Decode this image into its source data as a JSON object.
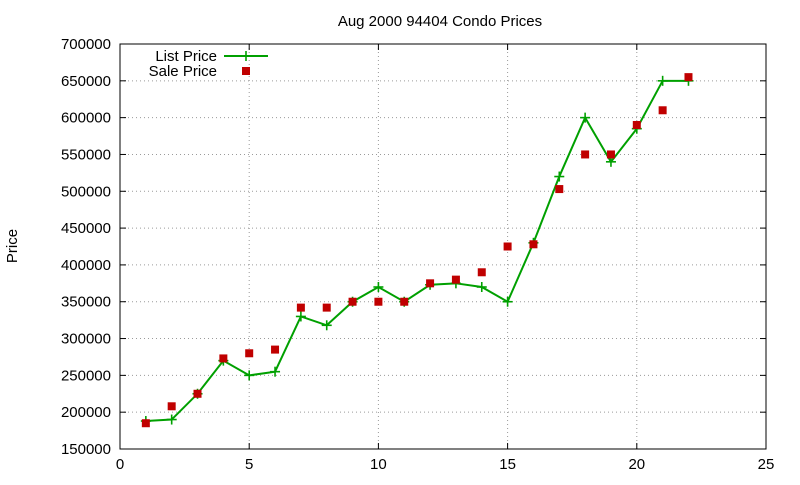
{
  "chart_data": {
    "type": "line",
    "title": "Aug 2000 94404 Condo Prices",
    "xlabel": "",
    "ylabel": "Price",
    "xlim": [
      0,
      25
    ],
    "ylim": [
      150000,
      700000
    ],
    "xticks": [
      0,
      5,
      10,
      15,
      20,
      25
    ],
    "yticks": [
      150000,
      200000,
      250000,
      300000,
      350000,
      400000,
      450000,
      500000,
      550000,
      600000,
      650000,
      700000
    ],
    "grid": true,
    "legend_position": "top-left",
    "series": [
      {
        "name": "List Price",
        "style": "line-cross",
        "color": "#00a000",
        "points": [
          [
            1,
            188000
          ],
          [
            2,
            190000
          ],
          [
            3,
            225000
          ],
          [
            4,
            270000
          ],
          [
            5,
            250000
          ],
          [
            6,
            255000
          ],
          [
            7,
            330000
          ],
          [
            8,
            318000
          ],
          [
            9,
            350000
          ],
          [
            10,
            370000
          ],
          [
            11,
            350000
          ],
          [
            12,
            373000
          ],
          [
            13,
            375000
          ],
          [
            14,
            370000
          ],
          [
            15,
            350000
          ],
          [
            16,
            430000
          ],
          [
            17,
            520000
          ],
          [
            18,
            600000
          ],
          [
            19,
            540000
          ],
          [
            20,
            585000
          ],
          [
            21,
            650000
          ],
          [
            22,
            650000
          ]
        ]
      },
      {
        "name": "Sale Price",
        "style": "square",
        "color": "#c00000",
        "points": [
          [
            1,
            185000
          ],
          [
            2,
            208000
          ],
          [
            3,
            225000
          ],
          [
            4,
            273000
          ],
          [
            5,
            280000
          ],
          [
            6,
            285000
          ],
          [
            7,
            342000
          ],
          [
            8,
            342000
          ],
          [
            9,
            350000
          ],
          [
            10,
            350000
          ],
          [
            11,
            350000
          ],
          [
            12,
            375000
          ],
          [
            13,
            380000
          ],
          [
            14,
            390000
          ],
          [
            15,
            425000
          ],
          [
            16,
            428000
          ],
          [
            17,
            503000
          ],
          [
            18,
            550000
          ],
          [
            19,
            550000
          ],
          [
            20,
            590000
          ],
          [
            21,
            610000
          ],
          [
            22,
            655000
          ]
        ]
      }
    ]
  }
}
